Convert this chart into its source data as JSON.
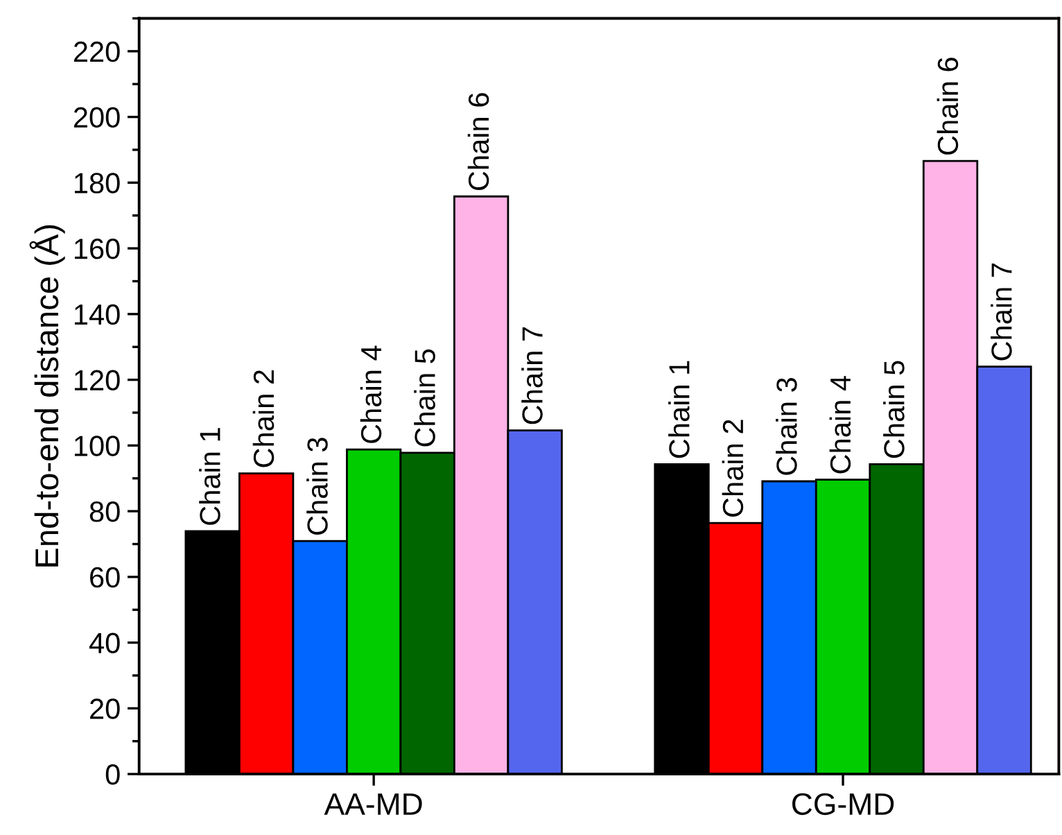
{
  "chart_data": {
    "type": "bar",
    "ylabel": "End-to-end distance (Å)",
    "categories": [
      "AA-MD",
      "CG-MD"
    ],
    "series": [
      {
        "name": "Chain 1",
        "color": "#000000",
        "values": [
          73.9,
          94.3
        ]
      },
      {
        "name": "Chain 2",
        "color": "#ff0000",
        "values": [
          91.5,
          76.4
        ]
      },
      {
        "name": "Chain 3",
        "color": "#0066ff",
        "values": [
          70.9,
          89.1
        ]
      },
      {
        "name": "Chain 4",
        "color": "#00cc00",
        "values": [
          98.8,
          89.6
        ]
      },
      {
        "name": "Chain 5",
        "color": "#006600",
        "values": [
          97.8,
          94.3
        ]
      },
      {
        "name": "Chain 6",
        "color": "#ffb3e6",
        "values": [
          175.8,
          186.6
        ]
      },
      {
        "name": "Chain 7",
        "color": "#5566ee",
        "values": [
          104.6,
          124.0
        ]
      }
    ],
    "ylim": [
      0,
      230
    ],
    "yticks": [
      0,
      20,
      40,
      60,
      80,
      100,
      120,
      140,
      160,
      180,
      200,
      220
    ],
    "grid": false,
    "legend": false
  }
}
